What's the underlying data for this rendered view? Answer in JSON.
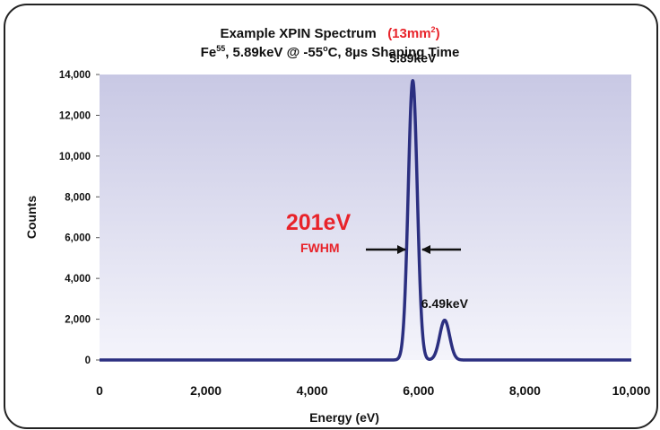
{
  "chart_data": {
    "type": "line",
    "title_main": "Example XPIN Spectrum",
    "title_area": "(13mm",
    "title_area_sup": "2",
    "title_area_close": ")",
    "subtitle_pre": "Fe",
    "subtitle_sup": "55",
    "subtitle_mid": ", 5.89keV @ -55",
    "subtitle_deg": "o",
    "subtitle_post": "C, 8µs Shaping Time",
    "xlabel": "Energy (eV)",
    "ylabel": "Counts",
    "xlim": [
      0,
      10000
    ],
    "ylim": [
      0,
      14000
    ],
    "x_ticks": [
      0,
      2000,
      4000,
      6000,
      8000,
      10000
    ],
    "y_ticks": [
      0,
      2000,
      4000,
      6000,
      8000,
      10000,
      12000,
      14000
    ],
    "x_tick_labels": [
      "0",
      "2,000",
      "4,000",
      "6,000",
      "8,000",
      "10,000"
    ],
    "y_tick_labels": [
      "0",
      "2,000",
      "4,000",
      "6,000",
      "8,000",
      "10,000",
      "12,000",
      "14,000"
    ],
    "grid": false,
    "series": [
      {
        "peaks": [
          {
            "center": 5890,
            "height": 13700,
            "fwhm": 201
          },
          {
            "center": 6490,
            "height": 1950,
            "fwhm": 220
          }
        ],
        "color": "#2b2f80"
      }
    ],
    "annotations": [
      {
        "label": "5.89keV",
        "x": 5890,
        "y": 14600
      },
      {
        "label": "6.49keV",
        "x": 6490,
        "y": 2550
      }
    ],
    "fwhm_value": "201eV",
    "fwhm_label": "FWHM"
  },
  "colors": {
    "plot_bg_top": "#c8c8e4",
    "plot_bg_bottom": "#f4f4fb",
    "line": "#2b2f80",
    "accent": "#e8232a"
  }
}
